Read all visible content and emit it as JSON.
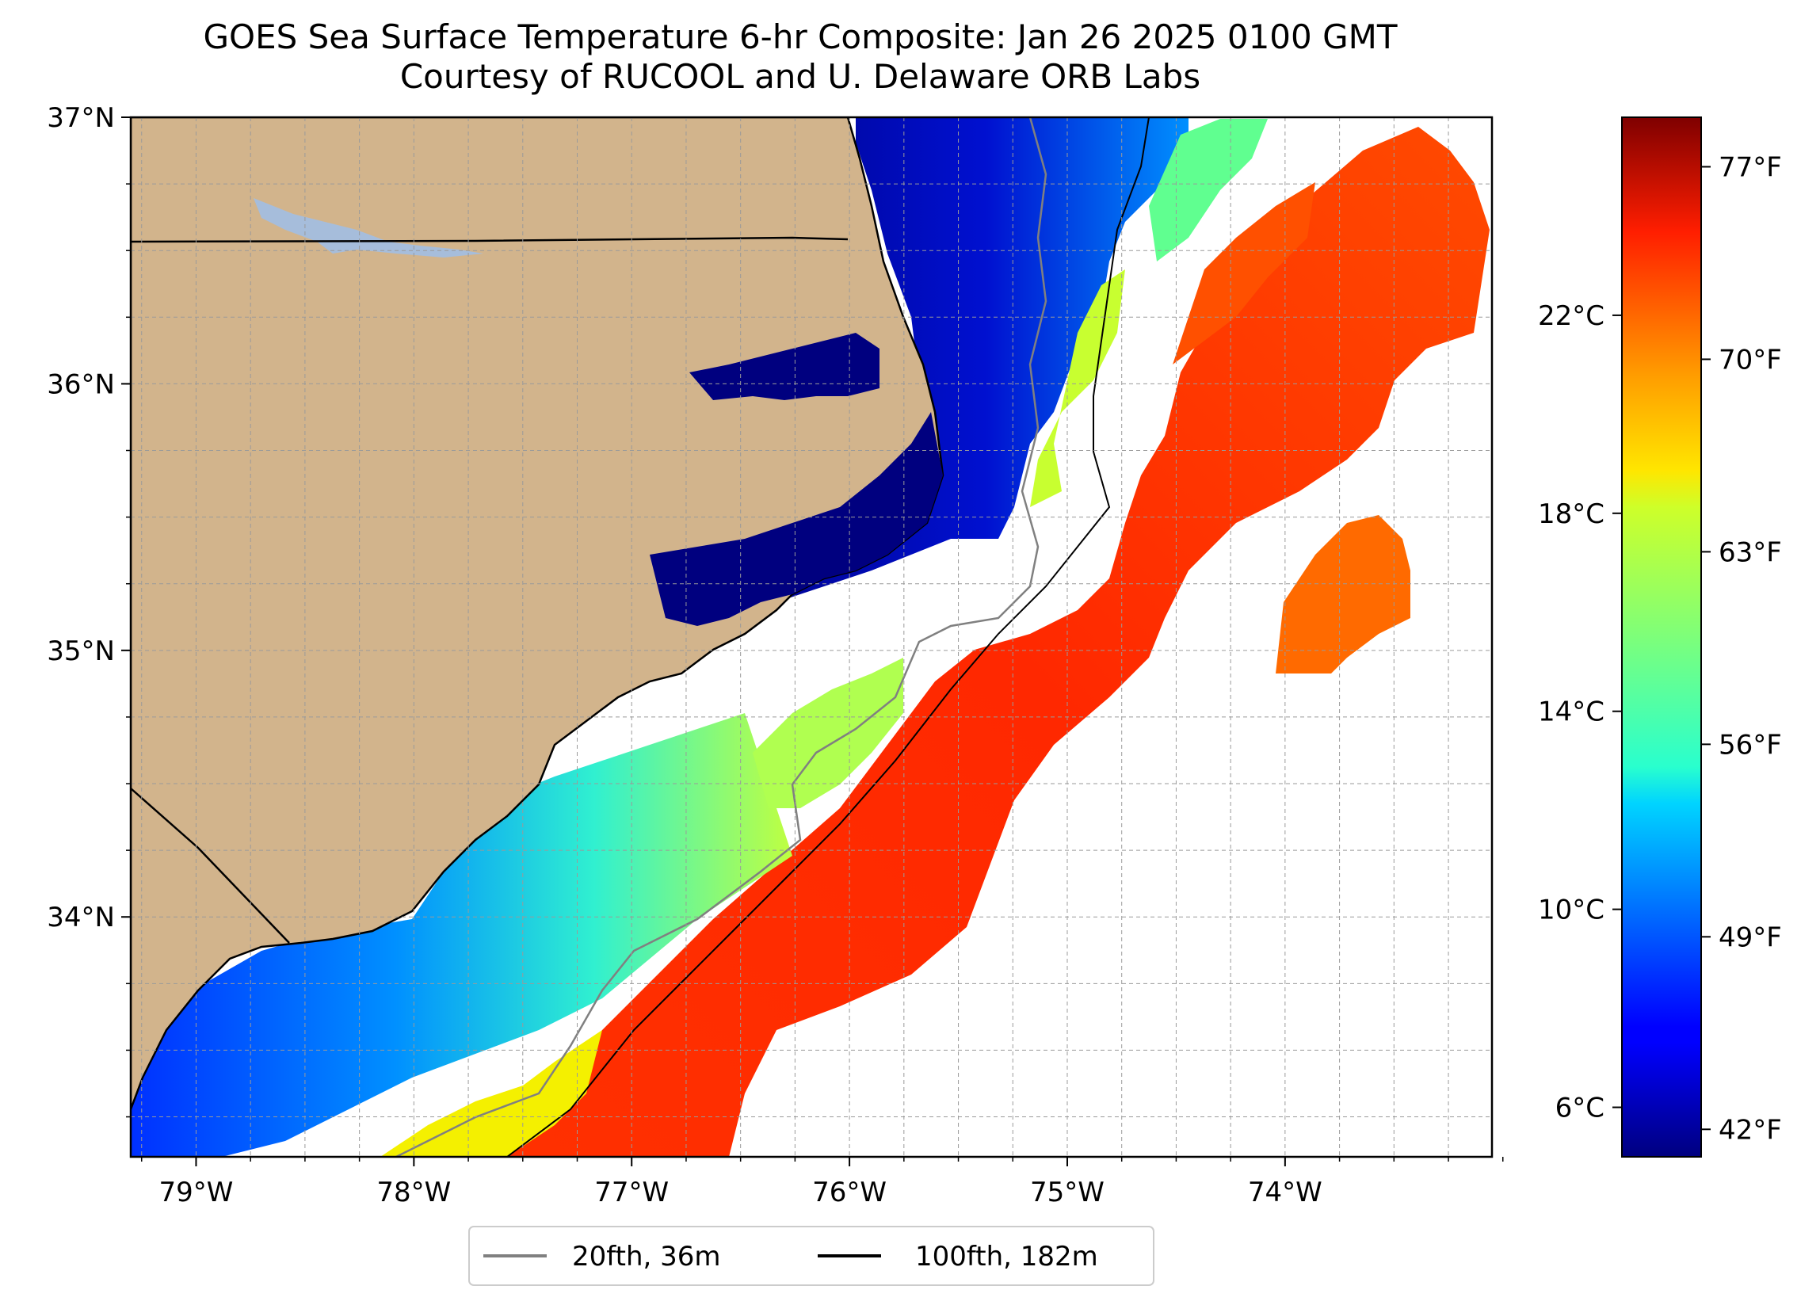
{
  "title": {
    "line1": "GOES Sea Surface Temperature 6-hr Composite: Jan 26 2025 0100 GMT",
    "line2": "Courtesy of RUCOOL and U. Delaware ORB Labs"
  },
  "map": {
    "lon_range": [
      -79.3,
      -73.05
    ],
    "lat_range": [
      33.1,
      37.0
    ],
    "lon_ticks": [
      {
        "value": -79,
        "label": "79°W"
      },
      {
        "value": -78,
        "label": "78°W"
      },
      {
        "value": -77,
        "label": "77°W"
      },
      {
        "value": -76,
        "label": "76°W"
      },
      {
        "value": -75,
        "label": "75°W"
      },
      {
        "value": -74,
        "label": "74°W"
      }
    ],
    "lat_ticks": [
      {
        "value": 37,
        "label": "37°N"
      },
      {
        "value": 36,
        "label": "36°N"
      },
      {
        "value": 35,
        "label": "35°N"
      },
      {
        "value": 34,
        "label": "34°N"
      }
    ],
    "grid": "dashed, 0.25° spacing",
    "land_color": "#d2b48c",
    "lake_color": "#a6bddb"
  },
  "colorbar": {
    "colormap": "jet",
    "celsius_range": [
      5.0,
      26.0
    ],
    "celsius_ticks": [
      {
        "value": 6,
        "label": "6°C"
      },
      {
        "value": 10,
        "label": "10°C"
      },
      {
        "value": 14,
        "label": "14°C"
      },
      {
        "value": 18,
        "label": "18°C"
      },
      {
        "value": 22,
        "label": "22°C"
      }
    ],
    "fahrenheit_ticks": [
      {
        "value": 42,
        "label": "42°F"
      },
      {
        "value": 49,
        "label": "49°F"
      },
      {
        "value": 56,
        "label": "56°F"
      },
      {
        "value": 63,
        "label": "63°F"
      },
      {
        "value": 70,
        "label": "70°F"
      },
      {
        "value": 77,
        "label": "77°F"
      }
    ]
  },
  "legend": {
    "placement": "bottom-center",
    "items": [
      {
        "label": "20fth, 36m",
        "color": "#808080"
      },
      {
        "label": "100fth, 182m",
        "color": "#000000"
      }
    ]
  }
}
